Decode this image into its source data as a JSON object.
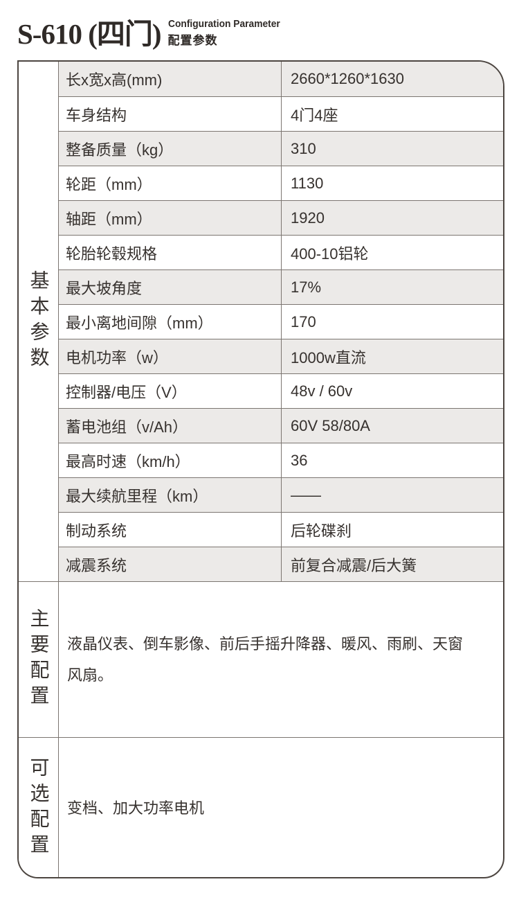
{
  "header": {
    "model": "S-610 (四门)",
    "subtitle_en": "Configuration Parameter",
    "subtitle_cn": "配置参数"
  },
  "sections": {
    "basic": {
      "label": "基本参数",
      "rows": [
        {
          "label": "长x宽x高(mm)",
          "value": "2660*1260*1630"
        },
        {
          "label": "车身结构",
          "value": "4门4座"
        },
        {
          "label": "整备质量（kg）",
          "value": "310"
        },
        {
          "label": "轮距（mm）",
          "value": "1130"
        },
        {
          "label": "轴距（mm）",
          "value": "1920"
        },
        {
          "label": "轮胎轮毂规格",
          "value": "400-10铝轮"
        },
        {
          "label": "最大坡角度",
          "value": "17%"
        },
        {
          "label": "最小离地间隙（mm）",
          "value": "170"
        },
        {
          "label": "电机功率（w）",
          "value": "1000w直流"
        },
        {
          "label": "控制器/电压（V）",
          "value": "48v / 60v"
        },
        {
          "label": "蓄电池组（v/Ah）",
          "value": "60V 58/80A"
        },
        {
          "label": "最高时速（km/h）",
          "value": "36"
        },
        {
          "label": "最大续航里程（km）",
          "value": "——"
        },
        {
          "label": "制动系统",
          "value": "后轮碟刹"
        },
        {
          "label": "减震系统",
          "value": "前复合减震/后大簧"
        }
      ]
    },
    "main_config": {
      "label": "主要配置",
      "content": "液晶仪表、倒车影像、前后手摇升降器、暖风、雨刷、天窗风扇。"
    },
    "optional_config": {
      "label": "可选配置",
      "content": "变档、加大功率电机"
    }
  },
  "colors": {
    "row_alt_bg": "#eceae8",
    "border_outer": "#4c4540",
    "border_inner": "#7b7570",
    "text": "#36312e"
  }
}
